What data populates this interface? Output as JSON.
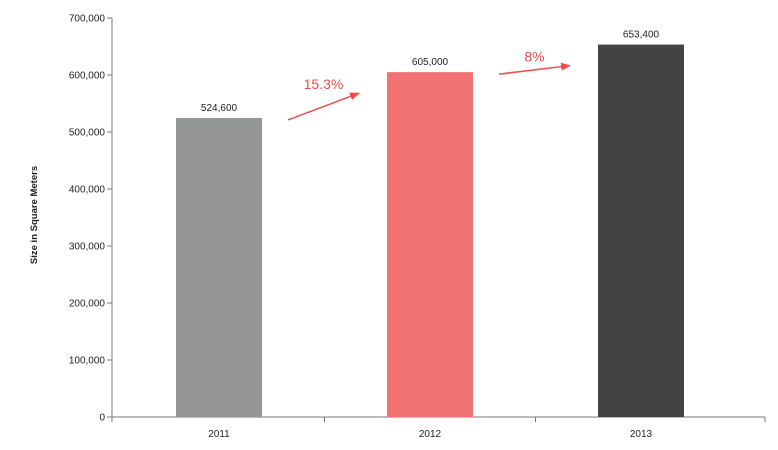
{
  "chart_data": {
    "type": "bar",
    "categories": [
      "2011",
      "2012",
      "2013"
    ],
    "values": [
      524600,
      605000,
      653400
    ],
    "value_labels": [
      "524,600",
      "605,000",
      "653,400"
    ],
    "bar_colors": [
      "#949695",
      "#f07272",
      "#434345"
    ],
    "ylabel": "Size in Square Meters",
    "xlabel": "",
    "ylim": [
      0,
      700000
    ],
    "yticks": [
      0,
      100000,
      200000,
      300000,
      400000,
      500000,
      600000,
      700000
    ],
    "ytick_labels": [
      "0",
      "100,000",
      "200,000",
      "300,000",
      "400,000",
      "500,000",
      "600,000",
      "700,000"
    ],
    "grid": false,
    "annotations": [
      {
        "text": "15.3%",
        "from": "2011",
        "to": "2012",
        "color": "#ee4b4b"
      },
      {
        "text": "8%",
        "from": "2012",
        "to": "2013",
        "color": "#ee4b4b"
      }
    ]
  }
}
